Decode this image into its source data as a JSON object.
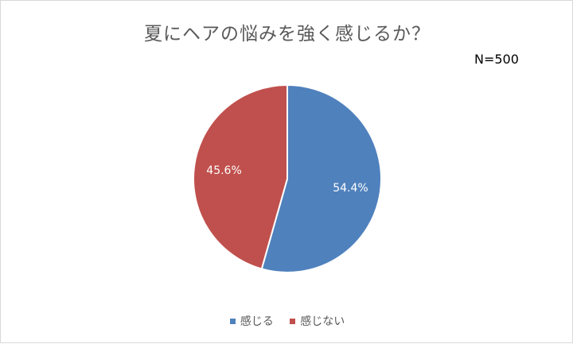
{
  "chart_data": {
    "type": "pie",
    "title": "夏にヘアの悩みを強く感じるか？",
    "note": "N=500",
    "categories": [
      "感じる",
      "感じない"
    ],
    "values": [
      54.4,
      45.6
    ],
    "labels": [
      "54.4%",
      "45.6%"
    ],
    "colors": [
      "#4f81bd",
      "#c0504d"
    ],
    "legend_position": "bottom"
  }
}
